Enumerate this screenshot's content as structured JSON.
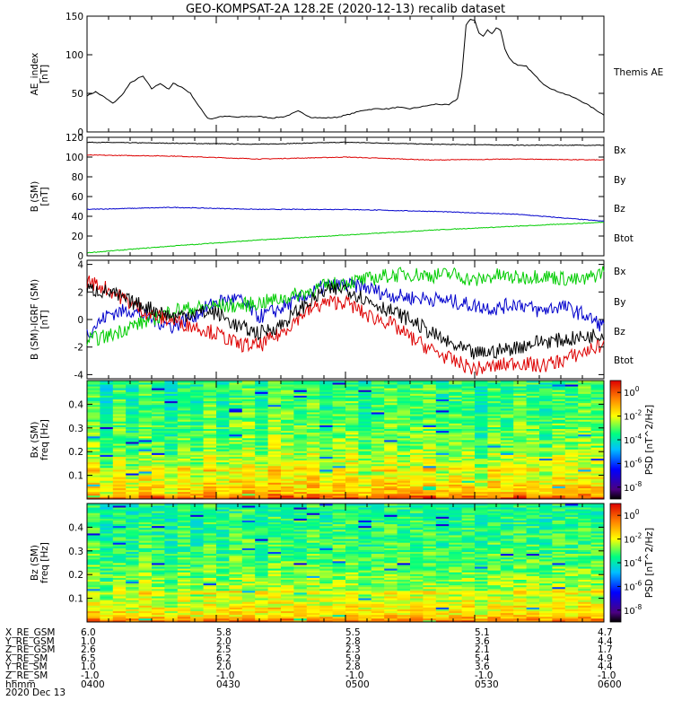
{
  "chart_data": {
    "title": "GEO-KOMPSAT-2A 128.2E (2020-12-13) recalib dataset",
    "xaxis": {
      "tick_labels": [
        "0400",
        "0430",
        "0500",
        "0530",
        "0600"
      ],
      "date_label": "2020 Dec 13",
      "time_label": "hhmm",
      "range_minutes": [
        0,
        120
      ]
    },
    "panels": [
      {
        "type": "line",
        "ylabel_lines": [
          "AE_index",
          "[nT]"
        ],
        "ylim": [
          0,
          150
        ],
        "yticks": [
          0,
          50,
          100,
          150
        ],
        "series": [
          {
            "name": "Themis AE",
            "color": "#000000",
            "x": [
              0,
              2,
              4,
              6,
              8,
              10,
              12,
              13,
              15,
              17,
              19,
              20,
              22,
              24,
              26,
              28,
              29,
              31,
              33,
              35,
              37,
              40,
              43,
              46,
              49,
              52,
              55,
              58,
              61,
              64,
              67,
              70,
              72,
              75,
              78,
              81,
              84,
              86,
              87,
              88,
              89,
              90,
              91,
              92,
              93,
              94,
              95,
              96,
              97,
              98,
              99,
              100,
              102,
              104,
              106,
              108,
              110,
              112,
              114,
              116,
              118,
              120
            ],
            "y": [
              47,
              52,
              45,
              37,
              47,
              63,
              70,
              72,
              56,
              63,
              55,
              63,
              58,
              50,
              33,
              18,
              17,
              20,
              20,
              19,
              20,
              20,
              18,
              20,
              27,
              19,
              18,
              19,
              23,
              28,
              30,
              30,
              32,
              30,
              33,
              36,
              35,
              43,
              73,
              138,
              146,
              145,
              128,
              124,
              132,
              127,
              135,
              132,
              108,
              96,
              90,
              86,
              85,
              73,
              62,
              55,
              51,
              47,
              42,
              36,
              29,
              22
            ]
          }
        ],
        "legend": [
          {
            "label": "Themis AE",
            "color": "#000000"
          }
        ]
      },
      {
        "type": "line",
        "ylabel_lines": [
          "B (SM)",
          "[nT]"
        ],
        "ylim": [
          0,
          120
        ],
        "yticks": [
          0,
          20,
          40,
          60,
          80,
          100,
          120
        ],
        "series": [
          {
            "name": "Btot",
            "color": "#000000",
            "x": [
              0,
              20,
              40,
              60,
              80,
              100,
              120
            ],
            "y": [
              115,
              114,
              113,
              115,
              113,
              112,
              112
            ]
          },
          {
            "name": "Bz",
            "color": "#dd0000",
            "x": [
              0,
              20,
              40,
              60,
              80,
              100,
              120
            ],
            "y": [
              102,
              101,
              98,
              100,
              97,
              98,
              97
            ]
          },
          {
            "name": "Bx",
            "color": "#0000cc",
            "x": [
              0,
              20,
              40,
              60,
              80,
              100,
              120
            ],
            "y": [
              47,
              49,
              47,
              47,
              45,
              42,
              35
            ]
          },
          {
            "name": "By",
            "color": "#00cc00",
            "x": [
              0,
              20,
              40,
              60,
              80,
              100,
              120
            ],
            "y": [
              3,
              10,
              16,
              21,
              26,
              30,
              34
            ]
          }
        ],
        "legend": [
          {
            "label": "Bx",
            "color": "#0000cc"
          },
          {
            "label": "By",
            "color": "#00cc00"
          },
          {
            "label": "Bz",
            "color": "#dd0000"
          },
          {
            "label": "Btot",
            "color": "#000000"
          }
        ]
      },
      {
        "type": "line",
        "ylabel_lines": [
          "B (SM)-IGRF (SM)",
          "[nT]"
        ],
        "ylim": [
          -4.3,
          4.3
        ],
        "yticks": [
          -4,
          -2,
          0,
          2,
          4
        ],
        "series": [
          {
            "name": "Bx",
            "color": "#0000cc",
            "x": [
              0,
              5,
              10,
              15,
              20,
              25,
              30,
              35,
              40,
              45,
              50,
              55,
              60,
              65,
              70,
              75,
              80,
              85,
              90,
              95,
              100,
              105,
              110,
              115,
              120
            ],
            "y": [
              -1,
              0.4,
              0.7,
              0,
              -0.5,
              0.3,
              1.3,
              1.5,
              0.2,
              0.8,
              1.6,
              2.4,
              2.5,
              2.3,
              1.8,
              1.6,
              1.5,
              1.3,
              1.0,
              0.8,
              1.2,
              0.6,
              1.0,
              0.4,
              -0.5
            ]
          },
          {
            "name": "By",
            "color": "#00cc00",
            "x": [
              0,
              5,
              10,
              15,
              20,
              25,
              30,
              35,
              40,
              45,
              50,
              55,
              60,
              65,
              70,
              75,
              80,
              85,
              90,
              95,
              100,
              105,
              110,
              115,
              120
            ],
            "y": [
              -1.5,
              -1.2,
              -0.5,
              0,
              0.7,
              0.8,
              1.0,
              1.0,
              1.2,
              1.5,
              1.9,
              2.4,
              2.7,
              2.9,
              3.2,
              3.3,
              3.2,
              3.3,
              2.8,
              3.2,
              3.0,
              3.2,
              3.0,
              2.8,
              3.5
            ]
          },
          {
            "name": "Bz",
            "color": "#dd0000",
            "x": [
              0,
              5,
              10,
              15,
              20,
              25,
              30,
              35,
              40,
              45,
              50,
              55,
              60,
              65,
              70,
              75,
              80,
              85,
              90,
              95,
              100,
              105,
              110,
              115,
              120
            ],
            "y": [
              2.8,
              2.2,
              1.2,
              0.3,
              -0.1,
              -0.5,
              -1.0,
              -1.8,
              -1.9,
              -1.0,
              0.4,
              1.2,
              1.3,
              0.3,
              -0.2,
              -1.3,
              -2.2,
              -3.0,
              -3.6,
              -3.4,
              -3.1,
              -3.4,
              -3.0,
              -2.4,
              -1.8
            ]
          },
          {
            "name": "Btot",
            "color": "#000000",
            "x": [
              0,
              5,
              10,
              15,
              20,
              25,
              30,
              35,
              40,
              45,
              50,
              55,
              60,
              65,
              70,
              75,
              80,
              85,
              90,
              95,
              100,
              105,
              110,
              115,
              120
            ],
            "y": [
              2.2,
              2.0,
              1.3,
              0.8,
              0.2,
              0.5,
              0.5,
              -0.5,
              -1.0,
              -0.4,
              0.9,
              2.0,
              2.3,
              1.4,
              0.7,
              0,
              -1.0,
              -1.9,
              -2.5,
              -2.3,
              -2.0,
              -1.6,
              -1.5,
              -1.3,
              -1.0
            ]
          }
        ],
        "legend": [
          {
            "label": "Bx",
            "color": "#0000cc"
          },
          {
            "label": "By",
            "color": "#00cc00"
          },
          {
            "label": "Bz",
            "color": "#dd0000"
          },
          {
            "label": "Btot",
            "color": "#000000"
          }
        ]
      },
      {
        "type": "heatmap",
        "ylabel_lines": [
          "Bx (SM)",
          "freq [Hz]"
        ],
        "ylim": [
          0,
          0.5
        ],
        "yticks": [
          0.1,
          0.2,
          0.3,
          0.4
        ],
        "colorbar": {
          "label": "PSD [nT^2/Hz]",
          "range_log10": [
            -9,
            1
          ],
          "ticks_log10": [
            0,
            -2,
            -4,
            -6,
            -8
          ]
        },
        "time_columns": 40,
        "freq_rows": 64,
        "row_level_log10": [
          -1.2,
          -1.8,
          -2.4,
          -2.6,
          -3.0,
          -3.2,
          -3.3,
          -3.4,
          -3.5,
          -3.6
        ],
        "column_level_log10": [
          0.3,
          -0.6,
          0.2,
          -0.4,
          0.3,
          0.1,
          -0.5,
          0.2,
          -0.3,
          0.4,
          -0.2,
          0.3,
          0.5,
          -0.1,
          0.6,
          0.4,
          0.2,
          0.5,
          -0.2,
          0.3,
          0.4,
          -0.3,
          0.2,
          0.5,
          0.1,
          0.3,
          0.4,
          -0.1,
          0.2,
          0.3,
          -0.4,
          0.3,
          0.1,
          0.4,
          0.2,
          -0.2,
          0.3,
          0.1,
          0.4,
          0.2
        ]
      },
      {
        "type": "heatmap",
        "ylabel_lines": [
          "Bz (SM)",
          "freq [Hz]"
        ],
        "ylim": [
          0,
          0.5
        ],
        "yticks": [
          0.1,
          0.2,
          0.3,
          0.4
        ],
        "colorbar": {
          "label": "PSD [nT^2/Hz]",
          "range_log10": [
            -9,
            1
          ],
          "ticks_log10": [
            0,
            -2,
            -4,
            -6,
            -8
          ]
        },
        "time_columns": 40,
        "freq_rows": 64,
        "row_level_log10": [
          -1.5,
          -2.0,
          -2.5,
          -2.8,
          -3.1,
          -3.3,
          -3.4,
          -3.5,
          -3.6,
          -3.7
        ],
        "column_level_log10": [
          0.2,
          -0.3,
          0.1,
          -0.2,
          0.2,
          0.0,
          -0.3,
          0.1,
          -0.2,
          0.2,
          -0.1,
          0.2,
          0.3,
          0.0,
          0.3,
          0.2,
          0.1,
          0.3,
          -0.1,
          0.2,
          0.2,
          -0.2,
          0.1,
          0.3,
          0.1,
          0.2,
          0.2,
          -0.1,
          0.1,
          0.2,
          -0.2,
          0.2,
          0.1,
          0.2,
          0.1,
          -0.1,
          0.2,
          0.1,
          0.2,
          0.1
        ]
      }
    ],
    "ephemeris": {
      "rows": [
        {
          "label": "X_RE_GSM",
          "values": [
            "6.0",
            "5.8",
            "5.5",
            "5.1",
            "4.7"
          ]
        },
        {
          "label": "Y_RE_GSM",
          "values": [
            "1.0",
            "2.0",
            "2.8",
            "3.6",
            "4.4"
          ]
        },
        {
          "label": "Z_RE_GSM",
          "values": [
            "2.6",
            "2.5",
            "2.3",
            "2.1",
            "1.7"
          ]
        },
        {
          "label": "X_RE_SM",
          "values": [
            "6.5",
            "6.2",
            "5.9",
            "5.4",
            "4.9"
          ]
        },
        {
          "label": "Y_RE_SM",
          "values": [
            "1.0",
            "2.0",
            "2.8",
            "3.6",
            "4.4"
          ]
        },
        {
          "label": "Z_RE_SM",
          "values": [
            "-1.0",
            "-1.0",
            "-1.0",
            "-1.0",
            "-1.0"
          ]
        },
        {
          "label": "hhmm",
          "values": [
            "0400",
            "0430",
            "0500",
            "0530",
            "0600"
          ]
        }
      ],
      "date": "2020 Dec 13"
    }
  }
}
